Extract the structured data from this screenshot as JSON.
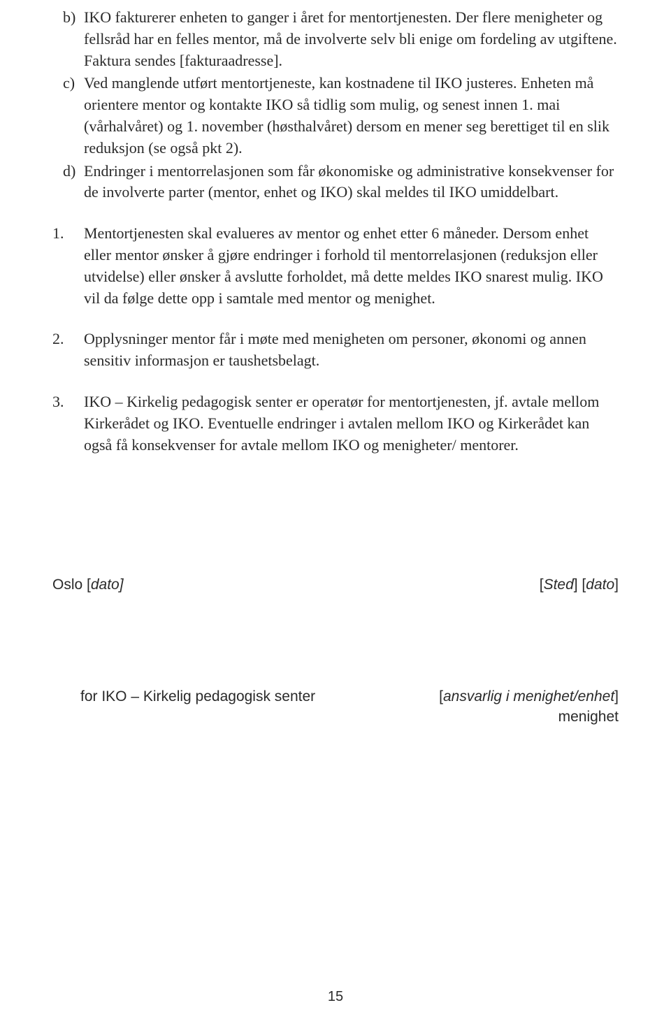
{
  "lettered": {
    "b": {
      "marker": "b)",
      "text": "IKO fakturerer enheten to ganger i året for mentortjenesten. Der flere menigheter og fellsråd har en felles mentor, må de involverte selv bli enige om fordeling av utgiftene. Faktura sendes [fakturaadresse]."
    },
    "c": {
      "marker": "c)",
      "text": "Ved manglende utført mentortjeneste, kan kostnadene til IKO justeres. Enheten må orientere mentor og kontakte IKO så tidlig som mulig, og senest innen 1. mai (vårhalvåret) og 1. november (høsthalvåret) dersom en mener seg berettiget til en slik reduksjon (se også pkt 2)."
    },
    "d": {
      "marker": "d)",
      "text": "Endringer i mentorrelasjonen som får økonomiske og administrative konsekvenser for de involverte parter (mentor, enhet og IKO) skal meldes til IKO umiddelbart."
    }
  },
  "numbered": {
    "n1": {
      "marker": "1.",
      "text": "Mentortjenesten skal evalueres av mentor og enhet etter 6 måneder. Dersom enhet eller mentor ønsker å gjøre endringer i forhold til mentorrelasjonen (reduksjon eller utvidelse) eller ønsker å avslutte forholdet, må dette meldes IKO snarest mulig. IKO vil da følge dette opp i samtale med mentor og menighet."
    },
    "n2": {
      "marker": "2.",
      "text": "Opplysninger mentor får i møte med menigheten om personer, økonomi og annen sensitiv informasjon er taushetsbelagt."
    },
    "n3": {
      "marker": "3.",
      "text": "IKO – Kirkelig pedagogisk senter er operatør for mentortjenesten, jf. avtale mellom Kirkerådet og IKO. Eventuelle endringer i avtalen mellom IKO og Kirkerådet kan også få konsekvenser for avtale mellom IKO og menigheter/ mentorer."
    }
  },
  "signature": {
    "top_left_prefix": "Oslo [",
    "top_left_italic": "dato]",
    "top_right_prefix": "[",
    "top_right_sted": "Sted",
    "top_right_mid": "] [",
    "top_right_dato": "dato",
    "top_right_suffix": "]",
    "bottom_left": "for IKO – Kirkelig pedagogisk senter",
    "bottom_right_prefix": "[",
    "bottom_right_italic": "ansvarlig i menighet/enhet",
    "bottom_right_suffix": "]",
    "bottom_right_line2": "menighet"
  },
  "page_number": "15"
}
